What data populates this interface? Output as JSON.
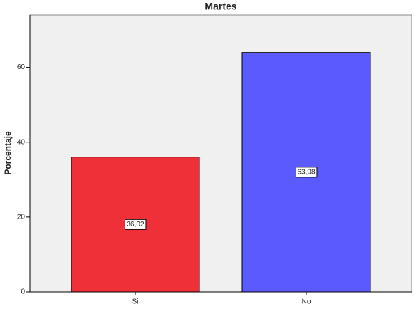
{
  "chart_data": {
    "type": "bar",
    "title": "Martes",
    "y_label": "Porcentaje",
    "categories": [
      "Si",
      "No"
    ],
    "values": [
      36.02,
      63.98
    ],
    "value_labels": [
      "36,02",
      "63,98"
    ],
    "colors": [
      "#ef3039",
      "#5a5aff"
    ],
    "ylim": [
      0,
      74
    ],
    "yticks": [
      0,
      20,
      40,
      60
    ],
    "grid": false
  }
}
